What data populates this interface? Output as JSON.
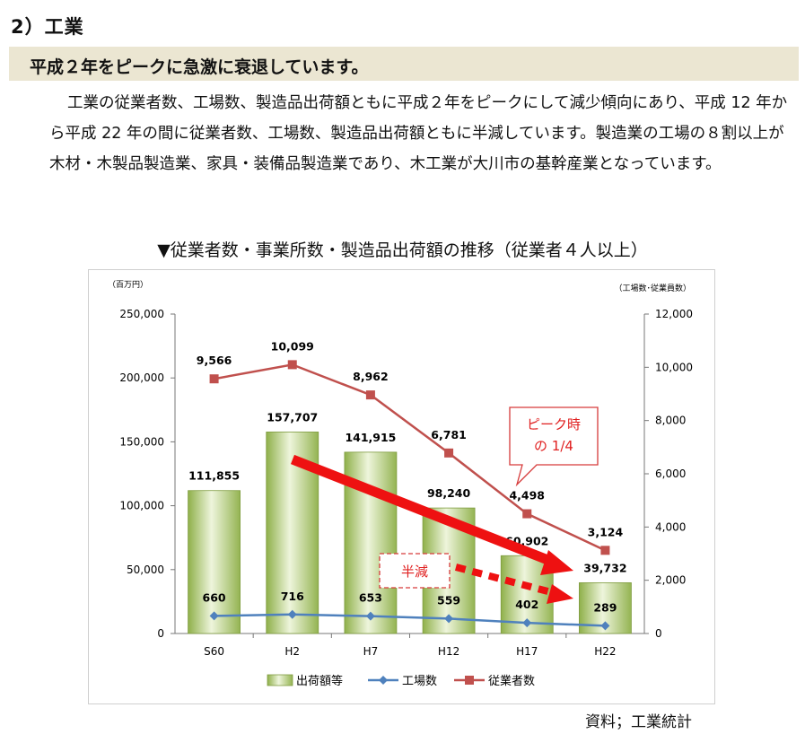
{
  "section": {
    "title": "2）工業"
  },
  "headline": {
    "text": "平成２年をピークに急激に衰退しています。"
  },
  "paragraph": {
    "text": "工業の従業者数、工場数、製造品出荷額ともに平成２年をピークにして減少傾向にあり、平成 12 年から平成 22 年の間に従業者数、工場数、製造品出荷額ともに半減しています。製造業の工場の８割以上が木材・木製品製造業、家具・装備品製造業であり、木工業が大川市の基幹産業となっています。"
  },
  "source": {
    "text": "資料；工業統計"
  },
  "chart_data": {
    "type": "bar",
    "title": "▼従業者数・事業所数・製造品出荷額の推移（従業者４人以上）",
    "left_unit": "（百万円）",
    "right_unit": "（工場数･従業員数）",
    "categories": [
      "S60",
      "H2",
      "H7",
      "H12",
      "H17",
      "H22"
    ],
    "left_ylim": [
      0,
      250000
    ],
    "left_ticks": [
      "0",
      "50,000",
      "100,000",
      "150,000",
      "200,000",
      "250,000"
    ],
    "right_ylim": [
      0,
      12000
    ],
    "right_ticks": [
      "0",
      "2,000",
      "4,000",
      "6,000",
      "8,000",
      "10,000",
      "12,000"
    ],
    "series": [
      {
        "name": "出荷額等",
        "axis": "left",
        "kind": "bar",
        "color": "#9bbb59",
        "values": [
          111855,
          157707,
          141915,
          98240,
          60902,
          39732
        ],
        "labels": [
          "111,855",
          "157,707",
          "141,915",
          "98,240",
          "60,902",
          "39,732"
        ]
      },
      {
        "name": "工場数",
        "axis": "right",
        "kind": "line",
        "color": "#4f81bd",
        "values": [
          660,
          716,
          653,
          559,
          402,
          289
        ],
        "labels": [
          "660",
          "716",
          "653",
          "559",
          "402",
          "289"
        ]
      },
      {
        "name": "従業者数",
        "axis": "right",
        "kind": "line",
        "color": "#c0504d",
        "values": [
          9566,
          10099,
          8962,
          6781,
          4498,
          3124
        ],
        "labels": [
          "9,566",
          "10,099",
          "8,962",
          "6,781",
          "4,498",
          "3,124"
        ]
      }
    ],
    "annotations": {
      "peak_line1": "ピーク時",
      "peak_line2": "の 1/4",
      "half": "半減"
    }
  }
}
